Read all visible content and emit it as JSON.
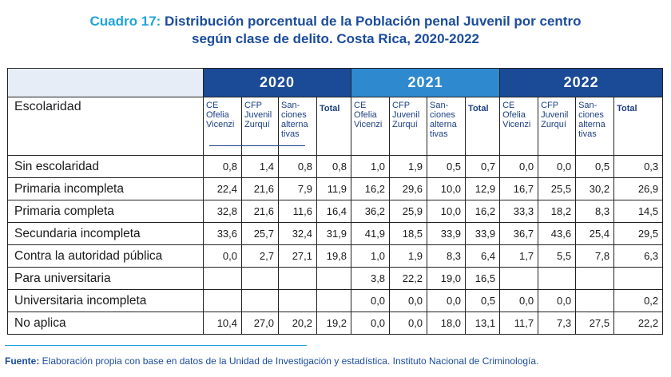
{
  "title": {
    "lead": "Cuadro 17:",
    "line1_rest": "Distribución porcentual de la Población penal Juvenil por centro",
    "line2": "según clase de delito. Costa Rica,  2020-2022"
  },
  "table": {
    "row_header": "Escolaridad",
    "years": [
      "2020",
      "2021",
      "2022"
    ],
    "columns": [
      {
        "l1": "CE",
        "l2": "Ofelia",
        "l3": "Vicenzi"
      },
      {
        "l1": "CFP",
        "l2": "Juvenil",
        "l3": "Zurquí"
      },
      {
        "l1": "San-",
        "l2": "ciones",
        "l3": "alterna",
        "l4": "tivas"
      },
      {
        "l1": "Total"
      }
    ],
    "rows": [
      {
        "label": "Sin escolaridad",
        "values": [
          "0,8",
          "1,4",
          "0,8",
          "0,8",
          "1,0",
          "1,9",
          "0,5",
          "0,7",
          "0,0",
          "0,0",
          "0,5",
          "0,3"
        ]
      },
      {
        "label": "Primaria incompleta",
        "values": [
          "22,4",
          "21,6",
          "7,9",
          "11,9",
          "16,2",
          "29,6",
          "10,0",
          "12,9",
          "16,7",
          "25,5",
          "30,2",
          "26,9"
        ]
      },
      {
        "label": "Primaria completa",
        "values": [
          "32,8",
          "21,6",
          "11,6",
          "16,4",
          "36,2",
          "25,9",
          "10,0",
          "16,2",
          "33,3",
          "18,2",
          "8,3",
          "14,5"
        ]
      },
      {
        "label": "Secundaria incompleta",
        "values": [
          "33,6",
          "25,7",
          "32,4",
          "31,9",
          "41,9",
          "18,5",
          "33,9",
          "33,9",
          "36,7",
          "43,6",
          "25,4",
          "29,5"
        ]
      },
      {
        "label": "Contra la autoridad pública",
        "values": [
          "0,0",
          "2,7",
          "27,1",
          "19,8",
          "1,0",
          "1,9",
          "8,3",
          "6,4",
          "1,7",
          "5,5",
          "7,8",
          "6,3"
        ]
      },
      {
        "label": "Para universitaria",
        "values": [
          "",
          "",
          "",
          "",
          "3,8",
          "22,2",
          "19,0",
          "16,5",
          "",
          "",
          "",
          ""
        ]
      },
      {
        "label": "Universitaria incompleta",
        "values": [
          "",
          "",
          "",
          "",
          "0,0",
          "0,0",
          "0,0",
          "0,5",
          "0,0",
          "0,0",
          "",
          "0,2"
        ]
      },
      {
        "label": "No aplica",
        "values": [
          "10,4",
          "27,0",
          "20,2",
          "19,2",
          "0,0",
          "0,0",
          "18,0",
          "13,1",
          "11,7",
          "7,3",
          "27,5",
          "22,2"
        ]
      }
    ]
  },
  "source": {
    "label": "Fuente:",
    "text": " Elaboración propia con base en datos de la Unidad de Investigación y estadística. Instituto Nacional de  Criminología."
  }
}
